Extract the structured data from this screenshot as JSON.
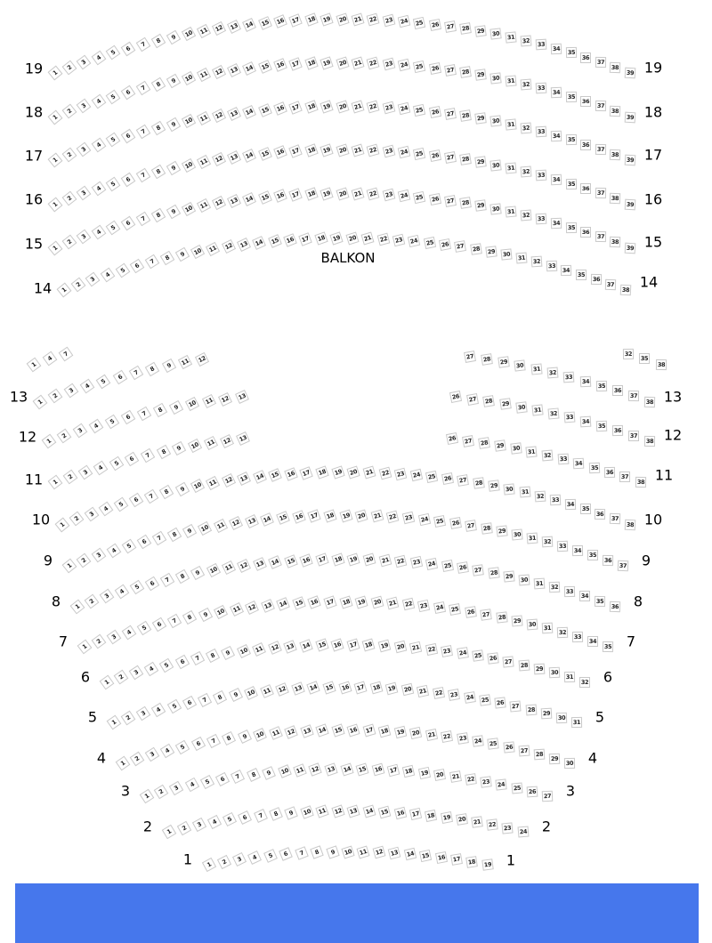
{
  "section_label": "BALKON",
  "colors": {
    "seat_border": "#c9c9c9",
    "seat_text": "#222222",
    "bottom_bar": "#4677ec"
  },
  "rows": [
    {
      "label": "19",
      "seat_range": [
        1,
        39
      ]
    },
    {
      "label": "18",
      "seat_range": [
        1,
        39
      ]
    },
    {
      "label": "17",
      "seat_range": [
        1,
        39
      ]
    },
    {
      "label": "16",
      "seat_range": [
        1,
        39
      ]
    },
    {
      "label": "15",
      "seat_range": [
        1,
        39
      ]
    },
    {
      "label": "14",
      "seat_range": [
        1,
        38
      ]
    },
    {
      "label": "",
      "key": "fragment",
      "seats": [
        "1",
        "4",
        "7",
        null,
        null,
        null,
        null,
        null,
        null,
        null,
        null,
        null,
        null,
        null,
        null,
        null,
        null,
        null,
        null,
        null,
        null,
        null,
        null,
        null,
        null,
        null,
        null,
        null,
        null,
        null,
        null,
        null,
        null,
        null,
        null,
        "32",
        "35",
        "38"
      ]
    },
    {
      "label": "13",
      "seats": [
        "1",
        "2",
        "3",
        "4",
        "5",
        "6",
        "7",
        "8",
        "9",
        "11",
        "12",
        null,
        null,
        null,
        null,
        null,
        null,
        null,
        null,
        null,
        null,
        null,
        null,
        null,
        null,
        null,
        "27",
        "28",
        "29",
        "30",
        "31",
        "32",
        "33",
        "34",
        "35",
        "36",
        "37",
        "38"
      ]
    },
    {
      "label": "12",
      "seats": [
        "1",
        "2",
        "3",
        "4",
        "5",
        "6",
        "7",
        "8",
        "9",
        "10",
        "11",
        "12",
        "13",
        null,
        null,
        null,
        null,
        null,
        null,
        null,
        null,
        null,
        null,
        null,
        null,
        "26",
        "27",
        "28",
        "29",
        "30",
        "31",
        "32",
        "33",
        "34",
        "35",
        "36",
        "37",
        "38"
      ]
    },
    {
      "label": "11",
      "seats": [
        "1",
        "2",
        "3",
        "4",
        "5",
        "6",
        "7",
        "8",
        "9",
        "10",
        "11",
        "12",
        "13",
        null,
        null,
        null,
        null,
        null,
        null,
        null,
        null,
        null,
        null,
        null,
        null,
        "26",
        "27",
        "28",
        "29",
        "30",
        "31",
        "32",
        "33",
        "34",
        "35",
        "36",
        "37",
        "38"
      ]
    },
    {
      "label": "10",
      "seat_range": [
        1,
        38
      ]
    },
    {
      "label": "9",
      "seat_range": [
        1,
        37
      ]
    },
    {
      "label": "8",
      "seat_range": [
        1,
        36
      ]
    },
    {
      "label": "7",
      "seat_range": [
        1,
        35
      ]
    },
    {
      "label": "6",
      "seat_range": [
        1,
        32
      ]
    },
    {
      "label": "5",
      "seat_range": [
        1,
        31
      ]
    },
    {
      "label": "4",
      "seat_range": [
        1,
        30
      ]
    },
    {
      "label": "3",
      "seat_range": [
        1,
        27
      ]
    },
    {
      "label": "2",
      "seat_range": [
        1,
        24
      ]
    },
    {
      "label": "1",
      "seat_range": [
        1,
        19
      ]
    }
  ]
}
